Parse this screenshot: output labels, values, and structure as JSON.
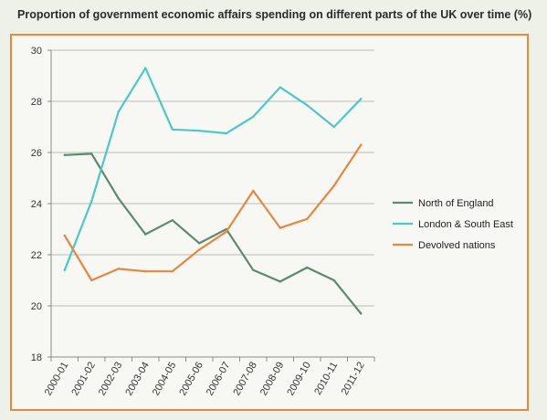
{
  "title": "Proportion of government economic affairs spending on different parts of the UK over time (%)",
  "chart_data": {
    "type": "line",
    "title": "Proportion of government economic affairs spending on different parts of the UK over time (%)",
    "xlabel": "",
    "ylabel": "",
    "categories": [
      "2000-01",
      "2001-02",
      "2002-03",
      "2003-04",
      "2004-05",
      "2005-06",
      "2006-07",
      "2007-08",
      "2008-09",
      "2009-10",
      "2010-11",
      "2011-12"
    ],
    "ylim": [
      18,
      30
    ],
    "yticks": [
      18,
      20,
      22,
      24,
      26,
      28,
      30
    ],
    "grid": "horizontal",
    "legend_position": "right",
    "series": [
      {
        "name": "North of England",
        "color": "#5b8a6e",
        "values": [
          25.9,
          25.95,
          24.2,
          22.8,
          23.35,
          22.45,
          23.0,
          21.4,
          20.95,
          21.5,
          21.0,
          19.7
        ]
      },
      {
        "name": "London & South East",
        "color": "#4bc8c8",
        "values": [
          21.4,
          24.1,
          27.6,
          29.3,
          26.9,
          26.85,
          26.75,
          27.4,
          28.55,
          27.85,
          27.0,
          28.1
        ]
      },
      {
        "name": "Devolved nations",
        "color": "#e8873e",
        "values": [
          22.75,
          21.0,
          21.45,
          21.35,
          21.35,
          22.2,
          22.9,
          24.5,
          23.05,
          23.4,
          24.7,
          26.3
        ]
      }
    ]
  }
}
